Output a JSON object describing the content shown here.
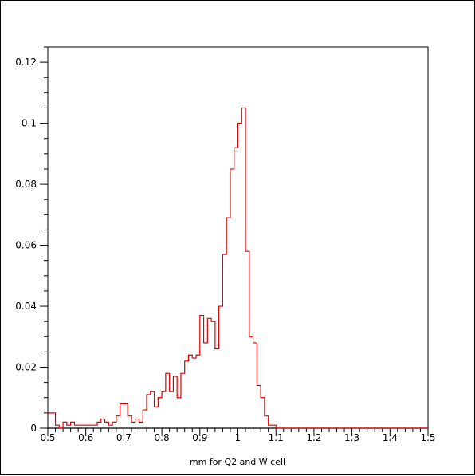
{
  "chart_data": {
    "type": "step-histogram",
    "xlabel": "mm for Q2 and W cell",
    "ylabel": "",
    "title": "",
    "xlim": [
      0.5,
      1.5
    ],
    "ylim": [
      0,
      0.125
    ],
    "x_ticks": [
      "0.5",
      "0.6",
      "0.7",
      "0.8",
      "0.9",
      "1",
      "1.1",
      "1.2",
      "1.3",
      "1.4",
      "1.5"
    ],
    "y_ticks": [
      "0",
      "0.02",
      "0.04",
      "0.06",
      "0.08",
      "0.1",
      "0.12"
    ],
    "bin_width": 0.01,
    "bin_start": 0.5,
    "grid": false,
    "legend": "none",
    "series": [
      {
        "color": "#000000",
        "values": [
          0.0,
          0.0,
          0.0,
          0.0,
          0.0,
          0.0,
          0.0,
          0.0,
          0.0,
          0.0,
          0.0,
          0.0,
          0.0,
          0.0,
          0.0,
          0.0,
          0.0,
          0.0,
          0.0,
          0.0,
          0.0,
          0.0,
          0.0,
          0.0,
          0.0,
          0.0,
          0.0,
          0.0,
          0.0,
          0.0,
          0.0,
          0.0,
          0.0,
          0.0,
          0.0,
          0.0,
          0.0,
          0.0,
          0.0,
          0.0,
          0.0,
          0.0,
          0.0,
          0.0,
          0.0,
          0.0,
          0.0,
          0.0,
          0.0,
          0.0,
          0.0,
          0.0,
          0.0,
          0.0,
          0.0,
          0.0,
          0.0,
          0.0,
          0.0,
          0.0,
          0.0,
          0.0,
          0.0,
          0.0,
          0.0,
          0.0,
          0.0,
          0.0,
          0.0,
          0.0,
          0.0,
          0.0,
          0.0,
          0.0,
          0.0,
          0.0,
          0.0,
          0.0,
          0.0,
          0.0,
          0.0,
          0.0,
          0.0,
          0.0,
          0.0,
          0.0,
          0.0,
          0.0,
          0.0,
          0.0,
          0.0,
          0.0,
          0.0,
          0.0,
          0.0,
          0.0,
          0.0,
          0.0,
          0.0,
          0.0
        ]
      },
      {
        "color": "#dd0000",
        "values": [
          0.005,
          0.005,
          0.001,
          0.0,
          0.002,
          0.001,
          0.002,
          0.001,
          0.001,
          0.001,
          0.001,
          0.001,
          0.001,
          0.002,
          0.003,
          0.002,
          0.001,
          0.002,
          0.004,
          0.008,
          0.008,
          0.004,
          0.002,
          0.003,
          0.002,
          0.006,
          0.011,
          0.012,
          0.007,
          0.01,
          0.012,
          0.018,
          0.012,
          0.017,
          0.01,
          0.018,
          0.022,
          0.024,
          0.023,
          0.024,
          0.037,
          0.028,
          0.036,
          0.035,
          0.026,
          0.04,
          0.057,
          0.069,
          0.085,
          0.092,
          0.1,
          0.105,
          0.058,
          0.03,
          0.028,
          0.014,
          0.01,
          0.004,
          0.001,
          0.001,
          0.0,
          0.0,
          0.0,
          0.0,
          0.0,
          0.0,
          0.0,
          0.0,
          0.0,
          0.0,
          0.0,
          0.0,
          0.0,
          0.0,
          0.0,
          0.0,
          0.0,
          0.0,
          0.0,
          0.0,
          0.0,
          0.0,
          0.0,
          0.0,
          0.0,
          0.0,
          0.0,
          0.0,
          0.0,
          0.0,
          0.0,
          0.0,
          0.0,
          0.0,
          0.0,
          0.0,
          0.0,
          0.0,
          0.0,
          0.0
        ]
      }
    ]
  }
}
